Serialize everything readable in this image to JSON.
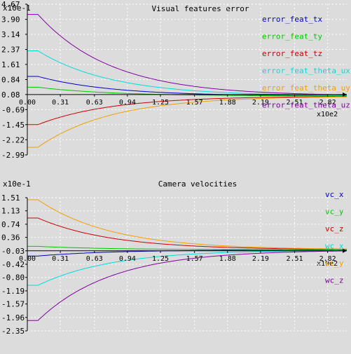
{
  "chart_data": [
    {
      "type": "line",
      "title": "Visual features error",
      "scale_label": "x10e-1",
      "x_scale_label": "x10e2",
      "xlabel": "",
      "ylabel": "",
      "x_ticks": [
        "0.00",
        "0.31",
        "0.63",
        "0.94",
        "1.25",
        "1.57",
        "1.88",
        "2.19",
        "2.51",
        "2.82"
      ],
      "y_ticks": [
        "4.67",
        "3.90",
        "3.14",
        "2.37",
        "1.61",
        "0.84",
        "0.08",
        "-0.69",
        "-1.45",
        "-2.22",
        "-2.99"
      ],
      "xlim": [
        0,
        3.0
      ],
      "ylim": [
        -2.99,
        4.67
      ],
      "grid": true,
      "legend_position": "right",
      "series": [
        {
          "name": "error_feat_tx",
          "color": "#0000c8",
          "start": 1.0,
          "final": 0.0,
          "delay": 0.1,
          "rate": 1.45
        },
        {
          "name": "error_feat_ty",
          "color": "#00c800",
          "start": 0.45,
          "final": 0.0,
          "delay": 0.1,
          "rate": 1.45
        },
        {
          "name": "error_feat_tz",
          "color": "#c80000",
          "start": -1.45,
          "final": 0.0,
          "delay": 0.1,
          "rate": 1.45
        },
        {
          "name": "error_feat_theta_ux",
          "color": "#00dcdc",
          "start": 2.3,
          "final": 0.0,
          "delay": 0.1,
          "rate": 1.45
        },
        {
          "name": "error_feat_theta_uy",
          "color": "#f0a000",
          "start": -2.6,
          "final": 0.0,
          "delay": 0.1,
          "rate": 1.45
        },
        {
          "name": "error_feat_theta_uz",
          "color": "#8000a0",
          "start": 4.15,
          "final": 0.0,
          "delay": 0.1,
          "rate": 1.45
        }
      ]
    },
    {
      "type": "line",
      "title": "Camera velocities",
      "scale_label": "x10e-1",
      "x_scale_label": "x10e2",
      "xlabel": "",
      "ylabel": "",
      "x_ticks": [
        "0.00",
        "0.31",
        "0.63",
        "0.94",
        "1.25",
        "1.57",
        "1.88",
        "2.19",
        "2.51",
        "2.82"
      ],
      "y_ticks": [
        "1.51",
        "1.13",
        "0.74",
        "0.36",
        "-0.03",
        "-0.42",
        "-0.80",
        "-1.19",
        "-1.57",
        "-1.96",
        "-2.35"
      ],
      "xlim": [
        0,
        3.0
      ],
      "ylim": [
        -2.35,
        1.51
      ],
      "grid": true,
      "legend_position": "right",
      "series": [
        {
          "name": "vc_x",
          "color": "#0000c8",
          "start": -0.18,
          "final": 0.0,
          "delay": 0.1,
          "rate": 1.45
        },
        {
          "name": "vc_y",
          "color": "#00c800",
          "start": 0.1,
          "final": 0.0,
          "delay": 0.1,
          "rate": 1.45
        },
        {
          "name": "vc_z",
          "color": "#c80000",
          "start": 0.92,
          "final": 0.0,
          "delay": 0.1,
          "rate": 1.45
        },
        {
          "name": "wc_x",
          "color": "#00dcdc",
          "start": -1.03,
          "final": 0.0,
          "delay": 0.1,
          "rate": 1.45
        },
        {
          "name": "wc_y",
          "color": "#f0a000",
          "start": 1.45,
          "final": 0.0,
          "delay": 0.1,
          "rate": 1.45
        },
        {
          "name": "wc_z",
          "color": "#8000a0",
          "start": -2.05,
          "final": 0.0,
          "delay": 0.1,
          "rate": 1.45
        }
      ]
    }
  ],
  "colors": {
    "background": "#dcdcdc",
    "axis": "#000000",
    "grid": "#ffffff"
  }
}
